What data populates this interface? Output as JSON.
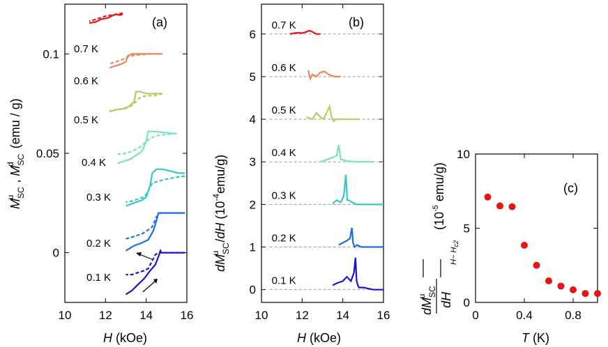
{
  "chart_data": [
    {
      "panel": "(a)",
      "type": "line",
      "title": "",
      "xlabel": "H (kOe)",
      "ylabel": "M_SC^u , M_SC^d (emu / g)",
      "xlim": [
        10,
        16
      ],
      "ylim": [
        -0.025,
        0.125
      ],
      "xticks": [
        10,
        12,
        14,
        16
      ],
      "yticks": [
        0,
        0.05,
        0.1
      ],
      "ytick_labels": [
        "0",
        "0.05",
        "0.1"
      ],
      "note": "curves offset vertically by 0.02 emu/g per temperature; solid = M_SC^u (field up), dashed = M_SC^d (field down)",
      "series": [
        {
          "name": "0.1 K",
          "color": "#1414d2",
          "offset": 0.0,
          "up": {
            "x": [
              13.0,
              13.3,
              13.6,
              13.9,
              14.2,
              14.45,
              14.6,
              14.7,
              14.75,
              14.85,
              15.0,
              15.5,
              15.9
            ],
            "y": [
              -0.021,
              -0.019,
              -0.016,
              -0.013,
              -0.009,
              -0.006,
              -0.002,
              0.001,
              0.0,
              0.0,
              0.0,
              0.0,
              0.0
            ]
          },
          "down": {
            "x": [
              15.9,
              15.5,
              15.0,
              14.8,
              14.6,
              14.45,
              14.3,
              14.1,
              13.9,
              13.6,
              13.3,
              13.0
            ],
            "y": [
              0.0,
              0.0,
              0.0,
              0.0,
              0.0,
              -0.001,
              -0.004,
              -0.008,
              -0.009,
              -0.01,
              -0.011,
              -0.011
            ]
          }
        },
        {
          "name": "0.2 K",
          "color": "#1c6ee6",
          "offset": 0.02,
          "up": {
            "x": [
              13.0,
              13.4,
              13.8,
              14.1,
              14.35,
              14.5,
              14.6,
              14.7,
              15.0,
              15.5,
              15.9
            ],
            "y": [
              0.001,
              0.0035,
              0.005,
              0.0065,
              0.011,
              0.016,
              0.02,
              0.02,
              0.02,
              0.02,
              0.02
            ]
          },
          "down": {
            "x": [
              15.9,
              15.5,
              15.0,
              14.7,
              14.5,
              14.3,
              14.1,
              13.8,
              13.5,
              13.2,
              13.0
            ],
            "y": [
              0.02,
              0.02,
              0.02,
              0.02,
              0.018,
              0.013,
              0.0115,
              0.0095,
              0.0085,
              0.0075,
              0.007
            ]
          }
        },
        {
          "name": "0.3 K",
          "color": "#32c8c8",
          "offset": 0.04,
          "up": {
            "x": [
              13.0,
              13.4,
              13.8,
              14.0,
              14.2,
              14.3,
              14.5,
              14.8,
              15.2,
              15.6,
              15.9
            ],
            "y": [
              0.0235,
              0.025,
              0.0265,
              0.028,
              0.034,
              0.04,
              0.042,
              0.042,
              0.041,
              0.04,
              0.04
            ]
          },
          "down": {
            "x": [
              15.9,
              15.5,
              15.0,
              14.6,
              14.3,
              14.1,
              13.9,
              13.6,
              13.3,
              13.0
            ],
            "y": [
              0.0385,
              0.038,
              0.037,
              0.036,
              0.035,
              0.031,
              0.028,
              0.027,
              0.026,
              0.0255
            ]
          }
        },
        {
          "name": "0.4 K",
          "color": "#78e6b4",
          "offset": 0.06,
          "up": {
            "x": [
              12.6,
              12.9,
              13.2,
              13.5,
              13.8,
              14.0,
              14.1,
              14.4,
              14.8,
              15.2,
              15.5
            ],
            "y": [
              0.045,
              0.046,
              0.047,
              0.049,
              0.051,
              0.056,
              0.061,
              0.061,
              0.0605,
              0.06,
              0.06
            ]
          },
          "down": {
            "x": [
              15.5,
              15.0,
              14.6,
              14.3,
              14.0,
              13.7,
              13.3,
              13.0,
              12.6
            ],
            "y": [
              0.06,
              0.0595,
              0.059,
              0.058,
              0.056,
              0.053,
              0.051,
              0.05,
              0.0495
            ]
          }
        },
        {
          "name": "0.5 K",
          "color": "#bec864",
          "offset": 0.08,
          "up": {
            "x": [
              12.2,
              12.6,
              13.0,
              13.2,
              13.4,
              13.5,
              13.7,
              14.0,
              14.3,
              14.8
            ],
            "y": [
              0.071,
              0.072,
              0.0725,
              0.074,
              0.076,
              0.081,
              0.081,
              0.08,
              0.08,
              0.08
            ]
          },
          "down": {
            "x": [
              14.8,
              14.4,
              14.0,
              13.7,
              13.5,
              13.3,
              13.0,
              12.6,
              12.2
            ],
            "y": [
              0.08,
              0.079,
              0.079,
              0.078,
              0.076,
              0.074,
              0.073,
              0.072,
              0.0715
            ]
          }
        },
        {
          "name": "0.6 K",
          "color": "#f0825a",
          "offset": 0.1,
          "up": {
            "x": [
              12.2,
              12.5,
              12.8,
              13.0,
              13.1,
              13.3,
              13.7,
              14.2,
              14.8
            ],
            "y": [
              0.093,
              0.094,
              0.095,
              0.096,
              0.099,
              0.1,
              0.1,
              0.1,
              0.1
            ]
          },
          "down": {
            "x": [
              14.8,
              14.2,
              13.6,
              13.2,
              13.0,
              12.8,
              12.5,
              12.2
            ],
            "y": [
              0.1,
              0.1,
              0.0995,
              0.099,
              0.098,
              0.097,
              0.096,
              0.095
            ]
          }
        },
        {
          "name": "0.7 K",
          "color": "#e61414",
          "offset": 0.12,
          "up": {
            "x": [
              11.2,
              11.5,
              11.8,
              12.1,
              12.3,
              12.5,
              12.7,
              12.85
            ],
            "y": [
              0.1155,
              0.116,
              0.1175,
              0.118,
              0.119,
              0.12,
              0.1195,
              0.12
            ]
          },
          "down": {
            "x": [
              12.85,
              12.6,
              12.3,
              12.0,
              11.7,
              11.4,
              11.2
            ],
            "y": [
              0.1205,
              0.12,
              0.1195,
              0.119,
              0.118,
              0.117,
              0.1165
            ]
          }
        }
      ]
    },
    {
      "panel": "(b)",
      "type": "line",
      "title": "",
      "xlabel": "H (kOe)",
      "ylabel": "dM_SC^u/dH (10^-4 emu/g)",
      "xlim": [
        10,
        16
      ],
      "ylim": [
        -0.3,
        6.7
      ],
      "xticks": [
        10,
        12,
        14,
        16
      ],
      "yticks": [
        0,
        1,
        2,
        3,
        4,
        5,
        6
      ],
      "note": "curves offset by 1 unit per temperature; dashed grey baselines at offsets",
      "series": [
        {
          "name": "0.1 K",
          "color": "#1414d2",
          "offset": 0,
          "x": [
            13.5,
            13.7,
            14.0,
            14.2,
            14.4,
            14.55,
            14.62,
            14.68,
            14.74,
            14.8,
            15.0,
            15.5,
            16.0
          ],
          "y": [
            0.1,
            0.15,
            0.2,
            0.3,
            0.2,
            0.4,
            0.75,
            0.2,
            0.1,
            0.05,
            0.05,
            0.0,
            0.0
          ]
        },
        {
          "name": "0.2 K",
          "color": "#1c6ee6",
          "offset": 1,
          "x": [
            13.8,
            14.0,
            14.2,
            14.35,
            14.45,
            14.5,
            14.58,
            14.7,
            14.9,
            15.2,
            15.6,
            16.0
          ],
          "y": [
            0.05,
            0.1,
            0.15,
            0.2,
            0.45,
            0.1,
            0.0,
            0.05,
            0.0,
            0.0,
            0.0,
            0.0
          ]
        },
        {
          "name": "0.3 K",
          "color": "#32c8c8",
          "offset": 2,
          "x": [
            13.5,
            13.7,
            13.9,
            14.05,
            14.15,
            14.22,
            14.3,
            14.45,
            14.7,
            15.0,
            15.5,
            16.0
          ],
          "y": [
            0.02,
            0.1,
            0.05,
            0.2,
            0.7,
            0.1,
            0.1,
            0.05,
            0.0,
            0.0,
            0.0,
            0.0
          ]
        },
        {
          "name": "0.4 K",
          "color": "#78e6b4",
          "offset": 3,
          "x": [
            12.9,
            13.2,
            13.5,
            13.7,
            13.8,
            13.9,
            14.0,
            14.2,
            14.6,
            15.0,
            15.5
          ],
          "y": [
            0.0,
            0.05,
            0.1,
            0.15,
            0.4,
            0.05,
            0.05,
            0.02,
            0.0,
            0.0,
            0.0
          ]
        },
        {
          "name": "0.5 K",
          "color": "#bec864",
          "offset": 4,
          "x": [
            12.2,
            12.5,
            12.7,
            12.9,
            13.05,
            13.25,
            13.35,
            13.45,
            13.55,
            13.65,
            14.0,
            14.8
          ],
          "y": [
            0.05,
            0.0,
            0.15,
            0.05,
            0.0,
            0.2,
            0.3,
            0.05,
            -0.05,
            0.0,
            0.0,
            0.0
          ]
        },
        {
          "name": "0.6 K",
          "color": "#f0825a",
          "offset": 5,
          "x": [
            12.3,
            12.4,
            12.5,
            12.7,
            12.9,
            13.1,
            13.3,
            13.6,
            13.9
          ],
          "y": [
            0.15,
            -0.05,
            0.05,
            0.0,
            0.1,
            0.12,
            0.05,
            0.0,
            0.0
          ]
        },
        {
          "name": "0.7 K",
          "color": "#e61414",
          "offset": 6,
          "x": [
            11.4,
            11.6,
            11.8,
            12.0,
            12.2,
            12.35,
            12.5,
            12.7,
            12.9
          ],
          "y": [
            0.0,
            0.02,
            0.03,
            0.02,
            0.05,
            0.08,
            0.05,
            0.0,
            0.0
          ]
        }
      ]
    },
    {
      "panel": "(c)",
      "type": "scatter",
      "title": "",
      "xlabel": "T (K)",
      "ylabel": "dM_SC^u/dH |_(H~Hc2) (10^-5 emu/g)",
      "xlim": [
        0,
        1.0
      ],
      "ylim": [
        0,
        10
      ],
      "xticks": [
        0,
        0.4,
        0.8
      ],
      "yticks": [
        0,
        5,
        10
      ],
      "color": "#e61414",
      "x": [
        0.1,
        0.2,
        0.3,
        0.4,
        0.5,
        0.6,
        0.7,
        0.8,
        0.9,
        1.0
      ],
      "y": [
        7.1,
        6.5,
        6.45,
        3.85,
        2.5,
        1.45,
        1.1,
        0.85,
        0.6,
        0.6
      ]
    }
  ],
  "labels": {
    "panel_a": "(a)",
    "panel_b": "(b)",
    "panel_c": "(c)",
    "temps": [
      "0.1 K",
      "0.2 K",
      "0.3 K",
      "0.4 K",
      "0.5 K",
      "0.6 K",
      "0.7 K"
    ],
    "x_title_unit": " (kOe)",
    "x_title_var": "H",
    "c_x_title_var": "T",
    "c_x_title_unit": " (K)",
    "a_y_unit": "(emu / g)",
    "b_y_unit": "(10",
    "b_y_unit_exp": "-4",
    "b_y_unit_end": "emu/g)",
    "c_y_unit_a": "(10",
    "c_y_unit_exp": "-5",
    "c_y_unit_end": " emu/g)",
    "c_sub": "H~ H",
    "c_sub2": "c2"
  }
}
